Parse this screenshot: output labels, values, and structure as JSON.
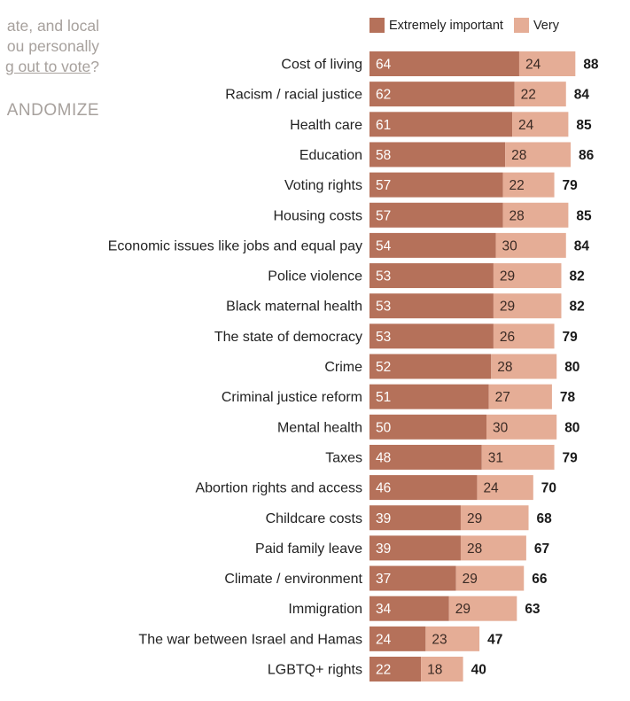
{
  "question": {
    "lines": [
      "ate, and local",
      "ou personally",
      "g out to vote?"
    ],
    "underlined_part": "g out to vote",
    "tail": "?"
  },
  "randomize_label": "ANDOMIZE",
  "colors": {
    "extremely": "#b5715a",
    "very": "#e5ad96",
    "text_muted": "#a7a19d"
  },
  "chart_data": {
    "type": "bar",
    "orientation": "horizontal",
    "stacked": true,
    "title": "",
    "xlabel": "",
    "ylabel": "",
    "legend": [
      "Extremely important",
      "Very"
    ],
    "legend_position": "top",
    "grid": false,
    "xlim": [
      0,
      100
    ],
    "categories": [
      "Cost of living",
      "Racism / racial justice",
      "Health care",
      "Education",
      "Voting rights",
      "Housing costs",
      "Economic issues like jobs and equal pay",
      "Police violence",
      "Black maternal health",
      "The state of democracy",
      "Crime",
      "Criminal justice reform",
      "Mental health",
      "Taxes",
      "Abortion rights and access",
      "Childcare costs",
      "Paid family leave",
      "Climate / environment",
      "Immigration",
      "The war between Israel and Hamas",
      "LGBTQ+ rights"
    ],
    "series": [
      {
        "name": "Extremely important",
        "values": [
          64,
          62,
          61,
          58,
          57,
          57,
          54,
          53,
          53,
          53,
          52,
          51,
          50,
          48,
          46,
          39,
          39,
          37,
          34,
          24,
          22
        ]
      },
      {
        "name": "Very",
        "values": [
          24,
          22,
          24,
          28,
          22,
          28,
          30,
          29,
          29,
          26,
          28,
          27,
          30,
          31,
          24,
          29,
          28,
          29,
          29,
          23,
          18
        ]
      }
    ],
    "totals": [
      88,
      84,
      85,
      86,
      79,
      85,
      84,
      82,
      82,
      79,
      80,
      78,
      80,
      79,
      70,
      68,
      67,
      66,
      63,
      47,
      40
    ]
  }
}
